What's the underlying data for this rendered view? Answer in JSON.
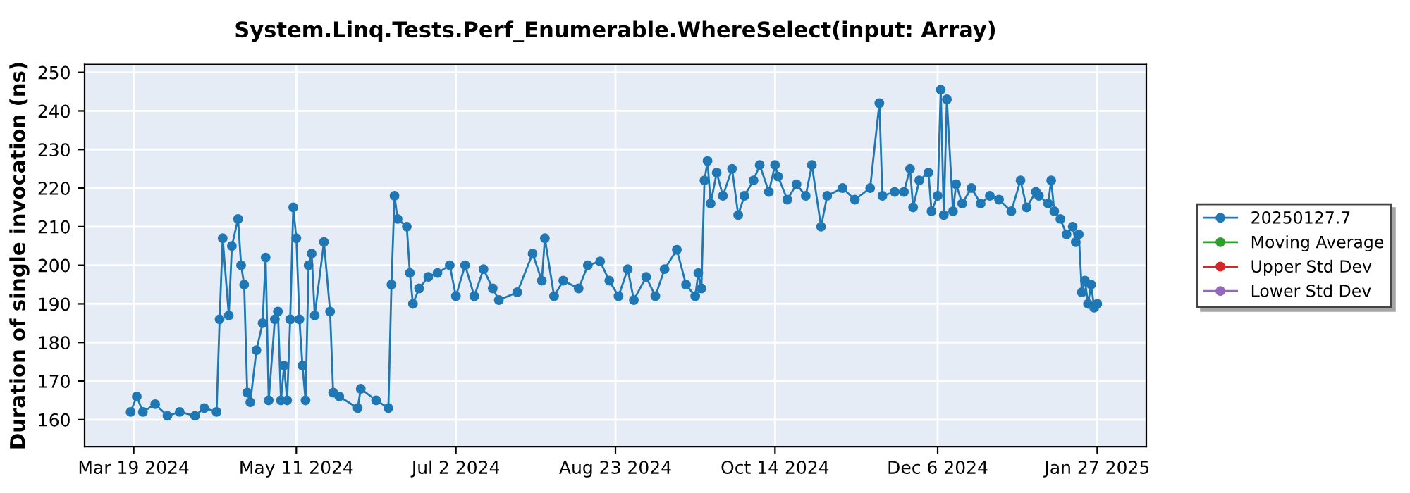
{
  "chart_data": {
    "type": "line",
    "title": "System.Linq.Tests.Perf_Enumerable.WhereSelect(input: Array)",
    "ylabel": "Duration of single invocation (ns)",
    "x": [
      "2024-03-18",
      "2024-03-20",
      "2024-03-22",
      "2024-03-26",
      "2024-03-30",
      "2024-04-03",
      "2024-04-08",
      "2024-04-11",
      "2024-04-15",
      "2024-04-16",
      "2024-04-17",
      "2024-04-19",
      "2024-04-20",
      "2024-04-22",
      "2024-04-23",
      "2024-04-24",
      "2024-04-25",
      "2024-04-26",
      "2024-04-28",
      "2024-04-30",
      "2024-05-01",
      "2024-05-02",
      "2024-05-04",
      "2024-05-05",
      "2024-05-06",
      "2024-05-07",
      "2024-05-08",
      "2024-05-09",
      "2024-05-10",
      "2024-05-11",
      "2024-05-12",
      "2024-05-13",
      "2024-05-14",
      "2024-05-15",
      "2024-05-16",
      "2024-05-17",
      "2024-05-20",
      "2024-05-22",
      "2024-05-23",
      "2024-05-25",
      "2024-05-31",
      "2024-06-01",
      "2024-06-06",
      "2024-06-10",
      "2024-06-11",
      "2024-06-12",
      "2024-06-13",
      "2024-06-16",
      "2024-06-17",
      "2024-06-18",
      "2024-06-20",
      "2024-06-23",
      "2024-06-26",
      "2024-06-30",
      "2024-07-02",
      "2024-07-05",
      "2024-07-08",
      "2024-07-11",
      "2024-07-14",
      "2024-07-16",
      "2024-07-22",
      "2024-07-27",
      "2024-07-30",
      "2024-07-31",
      "2024-08-03",
      "2024-08-06",
      "2024-08-11",
      "2024-08-14",
      "2024-08-18",
      "2024-08-21",
      "2024-08-24",
      "2024-08-27",
      "2024-08-29",
      "2024-09-02",
      "2024-09-05",
      "2024-09-08",
      "2024-09-12",
      "2024-09-15",
      "2024-09-18",
      "2024-09-19",
      "2024-09-20",
      "2024-09-21",
      "2024-09-22",
      "2024-09-23",
      "2024-09-25",
      "2024-09-27",
      "2024-09-30",
      "2024-10-02",
      "2024-10-04",
      "2024-10-07",
      "2024-10-09",
      "2024-10-12",
      "2024-10-14",
      "2024-10-15",
      "2024-10-18",
      "2024-10-21",
      "2024-10-24",
      "2024-10-26",
      "2024-10-29",
      "2024-10-31",
      "2024-11-05",
      "2024-11-09",
      "2024-11-14",
      "2024-11-17",
      "2024-11-18",
      "2024-11-22",
      "2024-11-25",
      "2024-11-27",
      "2024-11-28",
      "2024-11-30",
      "2024-12-03",
      "2024-12-04",
      "2024-12-06",
      "2024-12-07",
      "2024-12-08",
      "2024-12-09",
      "2024-12-11",
      "2024-12-12",
      "2024-12-14",
      "2024-12-17",
      "2024-12-20",
      "2024-12-23",
      "2024-12-26",
      "2024-12-30",
      "2025-01-02",
      "2025-01-04",
      "2025-01-07",
      "2025-01-08",
      "2025-01-11",
      "2025-01-12",
      "2025-01-13",
      "2025-01-15",
      "2025-01-17",
      "2025-01-19",
      "2025-01-20",
      "2025-01-21",
      "2025-01-22",
      "2025-01-23",
      "2025-01-24",
      "2025-01-25",
      "2025-01-26",
      "2025-01-27"
    ],
    "series": [
      {
        "name": "20250127.7",
        "color": "#1f77b4",
        "values": [
          162,
          166,
          162,
          164,
          161,
          162,
          161,
          163,
          162,
          186,
          207,
          187,
          205,
          212,
          200,
          195,
          167,
          164.5,
          178,
          185,
          202,
          165,
          186,
          188,
          165,
          174,
          165,
          186,
          215,
          207,
          186,
          174,
          165,
          200,
          203,
          187,
          206,
          188,
          167,
          166,
          163,
          168,
          165,
          163,
          195,
          218,
          212,
          210,
          198,
          190,
          194,
          197,
          198,
          200,
          192,
          200,
          192,
          199,
          194,
          191,
          193,
          203,
          196,
          207,
          192,
          196,
          194,
          200,
          201,
          196,
          192,
          199,
          191,
          197,
          192,
          199,
          204,
          195,
          192,
          198,
          194,
          222,
          227,
          216,
          224,
          218,
          225,
          213,
          218,
          222,
          226,
          219,
          226,
          223,
          217,
          221,
          218,
          226,
          210,
          218,
          220,
          217,
          220,
          242,
          218,
          219,
          219,
          225,
          215,
          222,
          224,
          214,
          218,
          245.5,
          213,
          243,
          214,
          221,
          216,
          220,
          216,
          218,
          217,
          214,
          222,
          215,
          219,
          218,
          216,
          222,
          214,
          212,
          208,
          210,
          206,
          208,
          193,
          196,
          190,
          195,
          189,
          190
        ]
      },
      {
        "name": "Moving Average",
        "color": "#2ca02c",
        "values": [
          null,
          null,
          null,
          null,
          null,
          null,
          null,
          null,
          null,
          null,
          null,
          null,
          null,
          null,
          null,
          null,
          null,
          null,
          null,
          null,
          null,
          null,
          null,
          null,
          null,
          null,
          null,
          null,
          null,
          null,
          null,
          null,
          null,
          null,
          null,
          null,
          null,
          null,
          null,
          null,
          null,
          null,
          null,
          null,
          null,
          null,
          null,
          null,
          null,
          null,
          null,
          null,
          null,
          null,
          null,
          null,
          null,
          null,
          null,
          null,
          null,
          null,
          null,
          null,
          null,
          null,
          null,
          null,
          null,
          null,
          null,
          null,
          null,
          null,
          null,
          null,
          null,
          null,
          null,
          null,
          null,
          null,
          null,
          null,
          null,
          null,
          null,
          null,
          null,
          null,
          null,
          null,
          null,
          null,
          null,
          null,
          null,
          null,
          null,
          null,
          null,
          null,
          null,
          null,
          null,
          null,
          null,
          null,
          null,
          null,
          null,
          null,
          null,
          null,
          null,
          null,
          null,
          null,
          null,
          null,
          null,
          null,
          null,
          null,
          null,
          null,
          null,
          null,
          null,
          null,
          null,
          null,
          null,
          null,
          null,
          null,
          null,
          null,
          null,
          null,
          null,
          null
        ]
      },
      {
        "name": "Upper Std Dev",
        "color": "#d62728",
        "values": [
          null,
          null,
          null,
          null,
          null,
          null,
          null,
          null,
          null,
          null,
          null,
          null,
          null,
          null,
          null,
          null,
          null,
          null,
          null,
          null,
          null,
          null,
          null,
          null,
          null,
          null,
          null,
          null,
          null,
          null,
          null,
          null,
          null,
          null,
          null,
          null,
          null,
          null,
          null,
          null,
          null,
          null,
          null,
          null,
          null,
          null,
          null,
          null,
          null,
          null,
          null,
          null,
          null,
          null,
          null,
          null,
          null,
          null,
          null,
          null,
          null,
          null,
          null,
          null,
          null,
          null,
          null,
          null,
          null,
          null,
          null,
          null,
          null,
          null,
          null,
          null,
          null,
          null,
          null,
          null,
          null,
          null,
          null,
          null,
          null,
          null,
          null,
          null,
          null,
          null,
          null,
          null,
          null,
          null,
          null,
          null,
          null,
          null,
          null,
          null,
          null,
          null,
          null,
          null,
          null,
          null,
          null,
          null,
          null,
          null,
          null,
          null,
          null,
          null,
          null,
          null,
          null,
          null,
          null,
          null,
          null,
          null,
          null,
          null,
          null,
          null,
          null,
          null,
          null,
          null,
          null,
          null,
          null,
          null,
          null,
          null,
          null,
          null,
          null,
          null,
          null,
          null
        ]
      },
      {
        "name": "Lower Std Dev",
        "color": "#9467bd",
        "values": [
          null,
          null,
          null,
          null,
          null,
          null,
          null,
          null,
          null,
          null,
          null,
          null,
          null,
          null,
          null,
          null,
          null,
          null,
          null,
          null,
          null,
          null,
          null,
          null,
          null,
          null,
          null,
          null,
          null,
          null,
          null,
          null,
          null,
          null,
          null,
          null,
          null,
          null,
          null,
          null,
          null,
          null,
          null,
          null,
          null,
          null,
          null,
          null,
          null,
          null,
          null,
          null,
          null,
          null,
          null,
          null,
          null,
          null,
          null,
          null,
          null,
          null,
          null,
          null,
          null,
          null,
          null,
          null,
          null,
          null,
          null,
          null,
          null,
          null,
          null,
          null,
          null,
          null,
          null,
          null,
          null,
          null,
          null,
          null,
          null,
          null,
          null,
          null,
          null,
          null,
          null,
          null,
          null,
          null,
          null,
          null,
          null,
          null,
          null,
          null,
          null,
          null,
          null,
          null,
          null,
          null,
          null,
          null,
          null,
          null,
          null,
          null,
          null,
          null,
          null,
          null,
          null,
          null,
          null,
          null,
          null,
          null,
          null,
          null,
          null,
          null,
          null,
          null,
          null,
          null,
          null,
          null,
          null,
          null,
          null,
          null,
          null,
          null,
          null,
          null,
          null,
          null
        ]
      }
    ],
    "xlim": [
      "2024-03-03",
      "2025-02-12"
    ],
    "xticks": [
      {
        "value": "2024-03-19",
        "label": "Mar 19 2024"
      },
      {
        "value": "2024-05-11",
        "label": "May 11 2024"
      },
      {
        "value": "2024-07-02",
        "label": "Jul 2 2024"
      },
      {
        "value": "2024-08-23",
        "label": "Aug 23 2024"
      },
      {
        "value": "2024-10-14",
        "label": "Oct 14 2024"
      },
      {
        "value": "2024-12-06",
        "label": "Dec 6 2024"
      },
      {
        "value": "2025-01-27",
        "label": "Jan 27 2025"
      }
    ],
    "ylim": [
      153,
      252
    ],
    "yticks": [
      160,
      170,
      180,
      190,
      200,
      210,
      220,
      230,
      240,
      250
    ],
    "grid": true,
    "legend": "right",
    "marker": "circle",
    "line_style": "solid"
  }
}
